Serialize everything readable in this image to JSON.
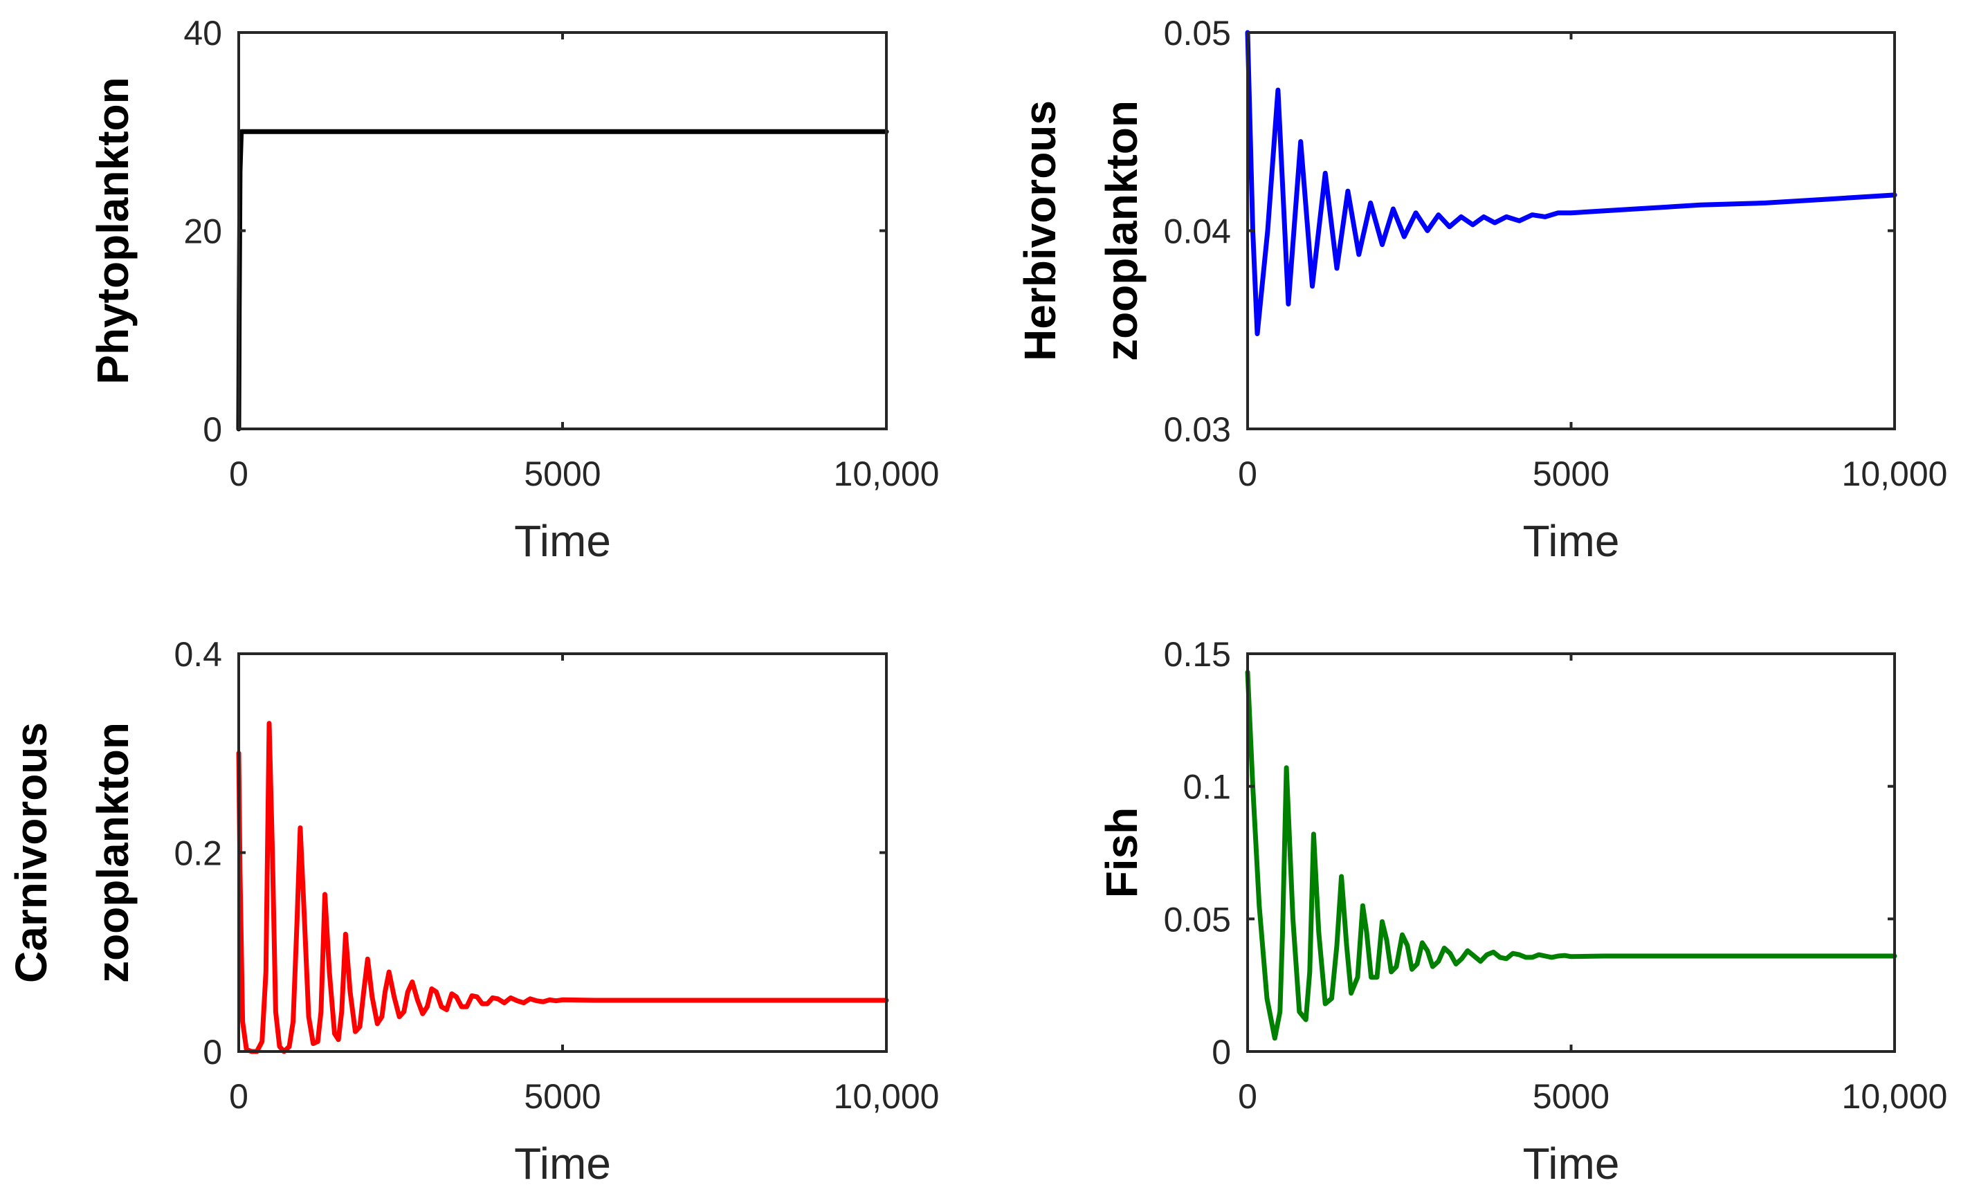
{
  "chart_data": [
    {
      "type": "line",
      "ylabel": [
        "Phytoplankton"
      ],
      "xlabel": "Time",
      "xlim": [
        0,
        10000
      ],
      "ylim": [
        0,
        40
      ],
      "xticks": [
        0,
        5000,
        10000
      ],
      "xticklabels": [
        "0",
        "5000",
        "10,000"
      ],
      "yticks": [
        0,
        20,
        40
      ],
      "yticklabels": [
        "0",
        "20",
        "40"
      ],
      "color": "#000000",
      "series": [
        {
          "name": "Phytoplankton",
          "x": [
            0,
            8,
            20,
            40,
            10000
          ],
          "y": [
            0,
            12,
            26,
            30,
            30
          ]
        }
      ]
    },
    {
      "type": "line",
      "ylabel": [
        "Herbivorous",
        "zooplankton"
      ],
      "xlabel": "Time",
      "xlim": [
        0,
        10000
      ],
      "ylim": [
        0.03,
        0.05
      ],
      "xticks": [
        0,
        5000,
        10000
      ],
      "xticklabels": [
        "0",
        "5000",
        "10,000"
      ],
      "yticks": [
        0.03,
        0.04,
        0.05
      ],
      "yticklabels": [
        "0.03",
        "0.04",
        "0.05"
      ],
      "color": "#0000ff",
      "series": [
        {
          "name": "Herbivorous zooplankton",
          "x": [
            0,
            80,
            150,
            310,
            470,
            630,
            820,
            1000,
            1200,
            1380,
            1550,
            1720,
            1900,
            2080,
            2250,
            2420,
            2600,
            2780,
            2950,
            3120,
            3300,
            3480,
            3650,
            3820,
            4000,
            4200,
            4400,
            4600,
            4800,
            5000,
            6000,
            7000,
            8000,
            9000,
            10000
          ],
          "y": [
            0.05,
            0.04,
            0.0348,
            0.04,
            0.0471,
            0.0363,
            0.0445,
            0.0372,
            0.0429,
            0.0381,
            0.042,
            0.0388,
            0.0414,
            0.0393,
            0.0411,
            0.0397,
            0.0409,
            0.04,
            0.0408,
            0.0402,
            0.0407,
            0.0403,
            0.0407,
            0.0404,
            0.0407,
            0.0405,
            0.0408,
            0.0407,
            0.0409,
            0.0409,
            0.0411,
            0.0413,
            0.0414,
            0.0416,
            0.0418
          ]
        }
      ]
    },
    {
      "type": "line",
      "ylabel": [
        "Carnivorous",
        "zooplankton"
      ],
      "xlabel": "Time",
      "xlim": [
        0,
        10000
      ],
      "ylim": [
        0,
        0.4
      ],
      "xticks": [
        0,
        5000,
        10000
      ],
      "xticklabels": [
        "0",
        "5000",
        "10,000"
      ],
      "yticks": [
        0,
        0.2,
        0.4
      ],
      "yticklabels": [
        "0",
        "0.2",
        "0.4"
      ],
      "color": "#ff0000",
      "series": [
        {
          "name": "Carnivorous zooplankton",
          "x": [
            0,
            20,
            60,
            120,
            200,
            280,
            360,
            420,
            470,
            520,
            570,
            630,
            700,
            780,
            840,
            900,
            950,
            1010,
            1080,
            1150,
            1220,
            1270,
            1330,
            1400,
            1480,
            1540,
            1590,
            1650,
            1720,
            1800,
            1870,
            1930,
            1990,
            2060,
            2140,
            2210,
            2260,
            2320,
            2400,
            2480,
            2550,
            2610,
            2680,
            2760,
            2840,
            2910,
            2980,
            3050,
            3130,
            3210,
            3290,
            3360,
            3440,
            3520,
            3600,
            3680,
            3760,
            3840,
            3920,
            4000,
            4100,
            4200,
            4300,
            4400,
            4500,
            4600,
            4700,
            4800,
            4900,
            5000,
            5500,
            6000,
            7000,
            8000,
            9000,
            10000
          ],
          "y": [
            0.3,
            0.18,
            0.03,
            0.002,
            0.0,
            0.0,
            0.01,
            0.08,
            0.33,
            0.2,
            0.04,
            0.005,
            0.0,
            0.005,
            0.03,
            0.13,
            0.225,
            0.14,
            0.035,
            0.008,
            0.01,
            0.04,
            0.158,
            0.08,
            0.018,
            0.012,
            0.04,
            0.118,
            0.06,
            0.02,
            0.025,
            0.06,
            0.093,
            0.055,
            0.028,
            0.035,
            0.06,
            0.08,
            0.055,
            0.035,
            0.04,
            0.06,
            0.07,
            0.052,
            0.038,
            0.045,
            0.063,
            0.06,
            0.045,
            0.042,
            0.058,
            0.055,
            0.045,
            0.045,
            0.056,
            0.055,
            0.048,
            0.048,
            0.054,
            0.053,
            0.049,
            0.054,
            0.051,
            0.049,
            0.053,
            0.051,
            0.05,
            0.052,
            0.051,
            0.052,
            0.0515,
            0.0515,
            0.0515,
            0.0515,
            0.0515,
            0.0515
          ]
        }
      ]
    },
    {
      "type": "line",
      "ylabel": [
        "Fish"
      ],
      "xlabel": "Time",
      "xlim": [
        0,
        10000
      ],
      "ylim": [
        0,
        0.15
      ],
      "xticks": [
        0,
        5000,
        10000
      ],
      "xticklabels": [
        "0",
        "5000",
        "10,000"
      ],
      "yticks": [
        0,
        0.05,
        0.1,
        0.15
      ],
      "yticklabels": [
        "0",
        "0.05",
        "0.1",
        "0.15"
      ],
      "color": "#008000",
      "series": [
        {
          "name": "Fish",
          "x": [
            0,
            80,
            180,
            300,
            420,
            500,
            540,
            600,
            700,
            800,
            900,
            960,
            1020,
            1100,
            1200,
            1300,
            1380,
            1450,
            1530,
            1600,
            1700,
            1780,
            1840,
            1910,
            2000,
            2080,
            2150,
            2220,
            2300,
            2390,
            2470,
            2540,
            2620,
            2700,
            2780,
            2860,
            2950,
            3040,
            3130,
            3220,
            3310,
            3400,
            3500,
            3600,
            3700,
            3800,
            3900,
            4000,
            4100,
            4200,
            4300,
            4400,
            4500,
            4600,
            4700,
            4800,
            4900,
            5000,
            5500,
            6000,
            7000,
            8000,
            9000,
            10000
          ],
          "y": [
            0.143,
            0.1,
            0.055,
            0.02,
            0.005,
            0.015,
            0.045,
            0.107,
            0.05,
            0.015,
            0.012,
            0.03,
            0.082,
            0.045,
            0.018,
            0.02,
            0.04,
            0.066,
            0.04,
            0.022,
            0.028,
            0.055,
            0.045,
            0.028,
            0.028,
            0.049,
            0.042,
            0.03,
            0.032,
            0.044,
            0.04,
            0.031,
            0.033,
            0.041,
            0.038,
            0.032,
            0.034,
            0.039,
            0.037,
            0.033,
            0.035,
            0.038,
            0.036,
            0.034,
            0.0365,
            0.0375,
            0.0355,
            0.035,
            0.037,
            0.0365,
            0.0355,
            0.0355,
            0.0365,
            0.036,
            0.0355,
            0.036,
            0.0362,
            0.0358,
            0.036,
            0.036,
            0.036,
            0.036,
            0.036,
            0.036
          ]
        }
      ]
    }
  ]
}
